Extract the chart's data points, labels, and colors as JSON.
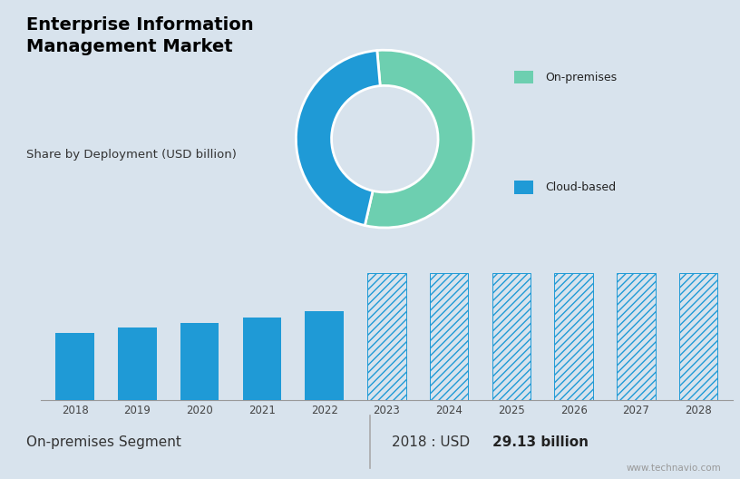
{
  "title": "Enterprise Information\nManagement Market",
  "subtitle": "Share by Deployment (USD billion)",
  "bar_years": [
    "2018",
    "2019",
    "2020",
    "2021",
    "2022",
    "2023",
    "2024",
    "2025",
    "2026",
    "2027",
    "2028"
  ],
  "bar_values_solid": [
    29.13,
    31.5,
    33.2,
    35.8,
    38.5
  ],
  "bar_values_forecast": [
    55,
    55,
    55,
    55,
    55,
    55
  ],
  "solid_count": 5,
  "bar_color_solid": "#1f9ad6",
  "bar_color_forecast_edge": "#1f9ad6",
  "donut_onpremises_pct": 55,
  "donut_cloudbased_pct": 45,
  "donut_color_onpremises": "#6dcfb0",
  "donut_color_cloudbased": "#1f9ad6",
  "legend_onpremises": "On-premises",
  "legend_cloudbased": "Cloud-based",
  "top_bg_color": "#c5d3df",
  "bottom_bg_color": "#d8e3ed",
  "footer_bg_color": "#ffffff",
  "footer_segment": "On-premises Segment",
  "footer_year": "2018",
  "footer_value": "29.13 billion",
  "footer_currency": "USD",
  "watermark": "www.technavio.com",
  "ylim": [
    0,
    55
  ],
  "grid_color": "#bbbbbb"
}
